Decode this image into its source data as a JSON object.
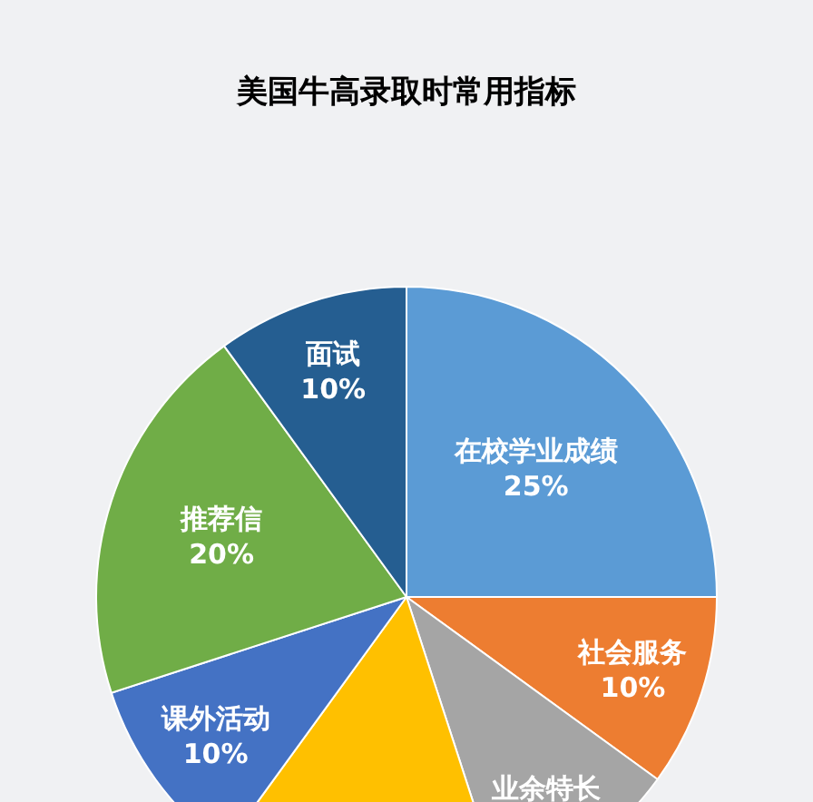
{
  "chart_data": {
    "type": "pie",
    "title": "美国牛高录取时常用指标",
    "categories": [
      "在校学业成绩",
      "社会服务",
      "业余特长",
      null,
      "课外活动",
      "推荐信",
      "面试"
    ],
    "values": [
      25,
      10,
      10,
      15,
      10,
      20,
      10
    ],
    "value_labels": [
      "25%",
      "10%",
      null,
      null,
      "10%",
      "20%",
      "10%"
    ],
    "colors": [
      "#5b9bd5",
      "#ed7d31",
      "#a5a5a5",
      "#ffc000",
      "#4472c4",
      "#70ad47",
      "#255e91"
    ],
    "legend": false
  }
}
